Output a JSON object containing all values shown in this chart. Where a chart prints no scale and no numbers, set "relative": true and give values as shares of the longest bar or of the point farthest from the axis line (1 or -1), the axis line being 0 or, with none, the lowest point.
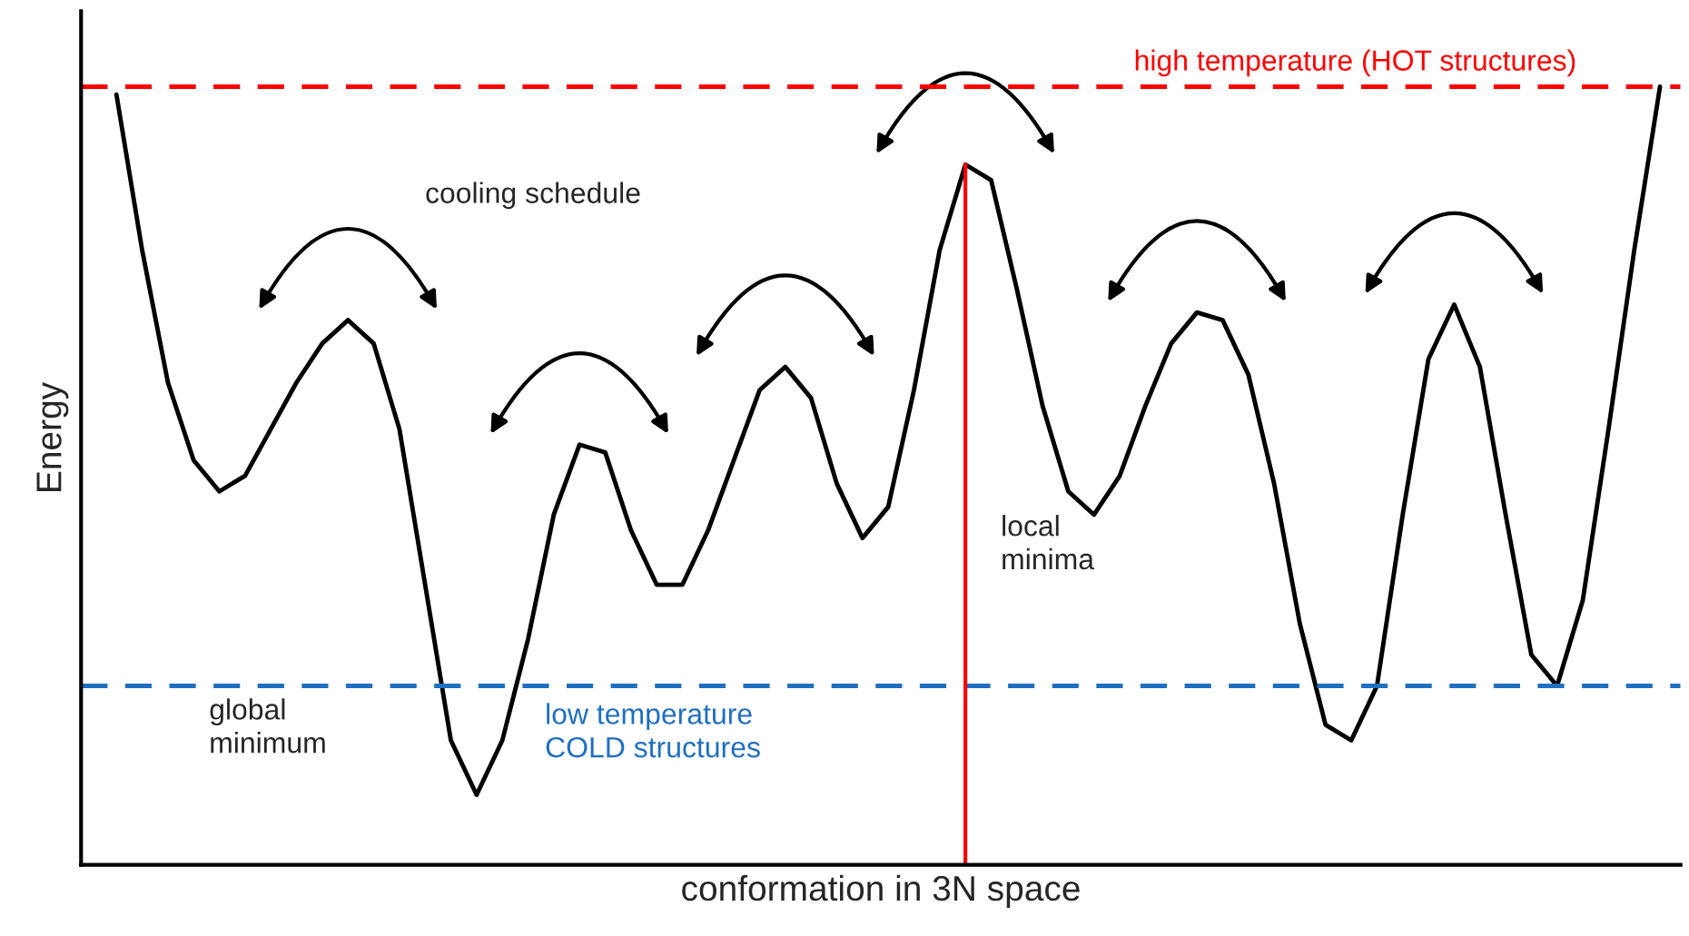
{
  "chart_data": {
    "type": "line",
    "relative": true,
    "xlabel": "conformation in 3N space",
    "ylabel": "Energy",
    "categories": [
      null,
      null,
      null,
      null,
      null,
      null,
      null,
      null,
      null,
      null,
      null,
      null,
      null,
      null,
      null,
      null,
      null,
      null,
      null,
      null,
      null,
      null,
      null,
      null,
      null,
      null,
      null,
      null,
      null,
      null,
      null,
      null,
      null,
      null,
      null,
      null,
      null,
      null,
      null,
      null,
      null,
      null,
      null,
      null,
      null,
      null,
      null,
      null,
      null,
      null,
      null,
      null,
      null,
      null,
      null,
      null,
      null,
      null,
      null,
      null,
      null
    ],
    "series": [
      {
        "color": "#000000",
        "values": [
          0.99,
          0.79,
          0.62,
          0.52,
          0.48,
          0.5,
          0.56,
          0.62,
          0.67,
          0.7,
          0.67,
          0.56,
          0.36,
          0.16,
          0.09,
          0.16,
          0.29,
          0.45,
          0.54,
          0.53,
          0.43,
          0.36,
          0.36,
          0.43,
          0.52,
          0.61,
          0.64,
          0.6,
          0.49,
          0.42,
          0.46,
          0.61,
          0.79,
          0.9,
          0.88,
          0.74,
          0.59,
          0.48,
          0.45,
          0.5,
          0.59,
          0.67,
          0.71,
          0.7,
          0.63,
          0.49,
          0.31,
          0.18,
          0.16,
          0.23,
          0.45,
          0.65,
          0.72,
          0.64,
          0.45,
          0.27,
          0.23,
          0.34,
          0.56,
          0.79,
          1.0
        ]
      }
    ],
    "ref_lines": [
      {
        "axis": "y",
        "value": 1.0,
        "label": "high temperature (HOT structures)",
        "color": "#ff0000",
        "line_style": "dashed"
      },
      {
        "axis": "y",
        "value": 0.23,
        "label": "low temperature\nCOLD structures",
        "color": "#1f6fc0",
        "line_style": "dashed"
      }
    ],
    "annotations": [
      "cooling schedule",
      "local\nminima",
      "global\nminimum"
    ],
    "marker": "none",
    "line_style": "solid",
    "legend": false
  }
}
